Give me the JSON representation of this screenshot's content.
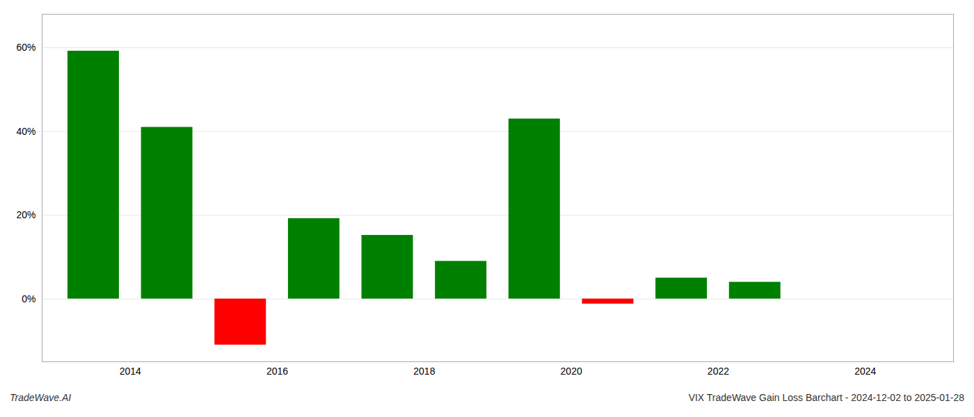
{
  "chart_data": {
    "type": "bar",
    "x": [
      2013.5,
      2014.5,
      2015.5,
      2016.5,
      2017.5,
      2018.5,
      2019.5,
      2020.5,
      2021.5,
      2022.5,
      2023.5
    ],
    "values": [
      59.2,
      41.0,
      -11.0,
      19.2,
      15.2,
      9.0,
      43.0,
      -1.2,
      5.0,
      4.0,
      0.0
    ],
    "colors": [
      "#008000",
      "#008000",
      "#ff0000",
      "#008000",
      "#008000",
      "#008000",
      "#008000",
      "#ff0000",
      "#008000",
      "#008000",
      "#008000"
    ],
    "xlim": [
      2012.8,
      2025.2
    ],
    "xticks": [
      2014,
      2016,
      2018,
      2020,
      2022,
      2024
    ],
    "ylim": [
      -15,
      68
    ],
    "yticks": [
      {
        "value": 0,
        "label": "0%"
      },
      {
        "value": 20,
        "label": "20%"
      },
      {
        "value": 40,
        "label": "40%"
      },
      {
        "value": 60,
        "label": "60%"
      }
    ],
    "grid": true,
    "annotations": [
      "TradeWave.AI",
      "VIX TradeWave Gain Loss Barchart - 2024-12-02 to 2025-01-28"
    ]
  }
}
